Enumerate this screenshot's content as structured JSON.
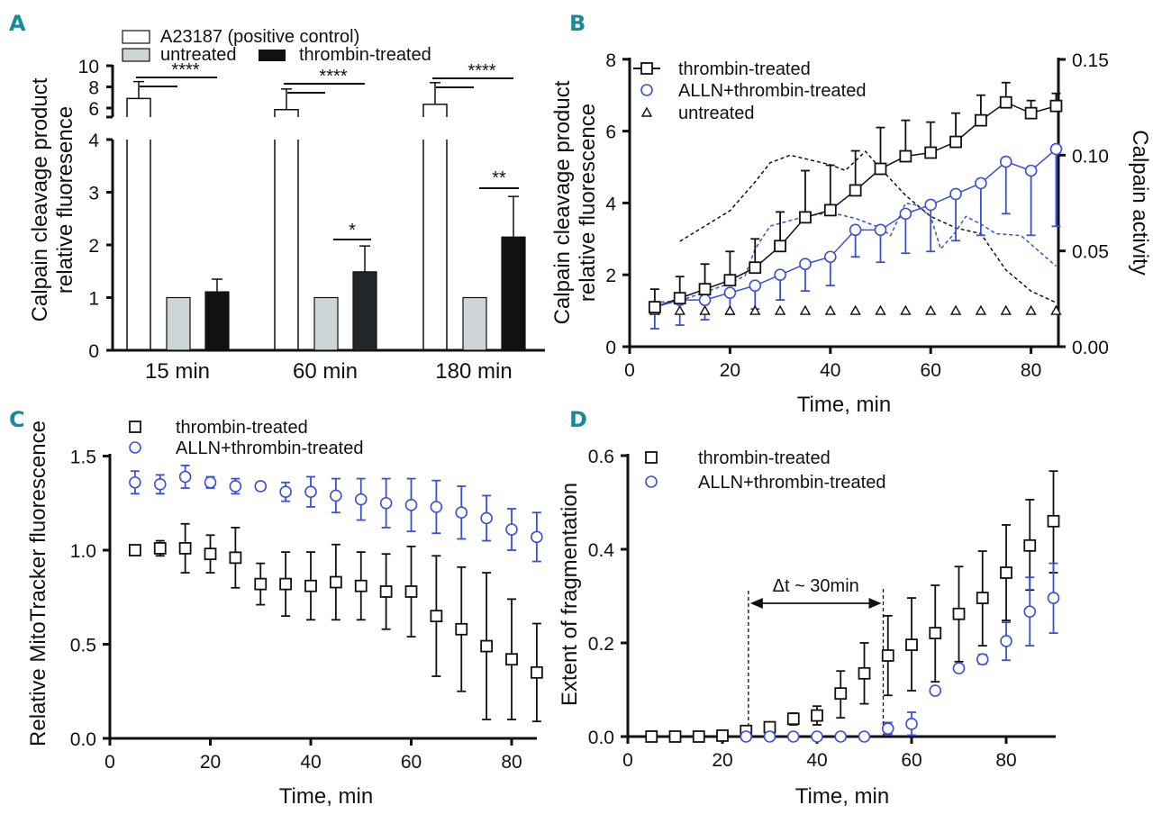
{
  "colors": {
    "black": "#111111",
    "blue": "#3b4fd6",
    "gray_bar": "#cdd5d6",
    "panel_letter": "#1a8a9a"
  },
  "chart_data": [
    {
      "panel": "A",
      "type": "bar",
      "categories": [
        "15 min",
        "60 min",
        "180 min"
      ],
      "ylabel": [
        "Calpain cleavage product",
        "relative fluoresence"
      ],
      "y_axis_broken": true,
      "yticks_lower": [
        "0",
        "1",
        "2",
        "3",
        "4"
      ],
      "yticks_upper": [
        "6",
        "8",
        "10"
      ],
      "legend": [
        "A23187 (positive control)",
        "untreated",
        "thrombin-treated"
      ],
      "series": [
        {
          "name": "A23187 (positive control)",
          "values": [
            6.9,
            5.85,
            6.35
          ],
          "err_upper": [
            8.5,
            7.8,
            8.4
          ],
          "color": "#ffffff"
        },
        {
          "name": "untreated",
          "values": [
            1,
            1,
            1
          ],
          "color": "#cdd5d6"
        },
        {
          "name": "thrombin-treated",
          "values": [
            1.11,
            1.49,
            2.15
          ],
          "err_upper": [
            1.35,
            1.98,
            2.92
          ],
          "color": "#111111"
        }
      ],
      "significance": [
        {
          "group": "15 min",
          "label": "****"
        },
        {
          "group": "60 min",
          "label": "****"
        },
        {
          "group": "180 min",
          "label": "****"
        },
        {
          "group": "60 min",
          "label": "*"
        },
        {
          "group": "180 min",
          "label": "**"
        }
      ]
    },
    {
      "panel": "B",
      "type": "line",
      "xlabel": "Time, min",
      "ylabel": [
        "Calpain cleavage product",
        "relative fluorescence"
      ],
      "ylabel_right": "Calpain activity",
      "xlim": [
        0,
        85
      ],
      "ylim": [
        0,
        8
      ],
      "ylim_right": [
        0,
        0.15
      ],
      "xticks": [
        "0",
        "20",
        "40",
        "60",
        "80"
      ],
      "yticks": [
        "0",
        "2",
        "4",
        "6",
        "8"
      ],
      "yticks_right": [
        "0.00",
        "0.05",
        "0.10",
        "0.15"
      ],
      "legend": [
        "thrombin-treated",
        "ALLN+thrombin-treated",
        "untreated"
      ],
      "x": [
        5,
        10,
        15,
        20,
        25,
        30,
        35,
        40,
        45,
        50,
        55,
        60,
        65,
        70,
        75,
        80,
        85
      ],
      "series": [
        {
          "name": "thrombin-treated",
          "marker": "square",
          "color": "#111111",
          "values": [
            1.1,
            1.35,
            1.6,
            1.85,
            2.2,
            2.8,
            3.6,
            3.8,
            4.35,
            4.95,
            5.3,
            5.4,
            5.7,
            6.3,
            6.8,
            6.5,
            6.7
          ],
          "err_upper": [
            1.6,
            1.95,
            2.3,
            2.65,
            3.0,
            3.75,
            4.9,
            5.05,
            5.45,
            6.1,
            6.3,
            6.25,
            6.5,
            7.0,
            7.35,
            6.85,
            7.05
          ]
        },
        {
          "name": "ALLN+thrombin-treated",
          "marker": "circle",
          "color": "#3b4fd6",
          "values": [
            1.1,
            1.3,
            1.3,
            1.5,
            1.7,
            2.0,
            2.3,
            2.5,
            3.25,
            3.25,
            3.7,
            3.95,
            4.25,
            4.55,
            5.15,
            4.9,
            5.5
          ],
          "err_lower": [
            0.5,
            0.6,
            0.75,
            0.9,
            1.05,
            1.3,
            1.55,
            1.7,
            2.5,
            2.35,
            2.6,
            2.65,
            2.95,
            3.1,
            3.7,
            3.1,
            3.35
          ]
        },
        {
          "name": "untreated",
          "marker": "triangle",
          "color": "#111111",
          "values": [
            1,
            1,
            1,
            1,
            1,
            1,
            1,
            1,
            1,
            1,
            1,
            1,
            1,
            1,
            1,
            1,
            1
          ]
        }
      ],
      "calpain_activity_right_axis": [
        {
          "color": "#111111",
          "style": "dashed",
          "x": [
            10,
            20,
            25,
            28,
            32,
            40,
            43,
            47,
            50,
            55,
            60,
            65,
            70,
            75,
            80,
            85
          ],
          "values": [
            0.055,
            0.071,
            0.086,
            0.096,
            0.1,
            0.095,
            0.092,
            0.102,
            0.093,
            0.079,
            0.068,
            0.062,
            0.059,
            0.04,
            0.029,
            0.023
          ]
        },
        {
          "color": "#3b4fd6",
          "style": "dashed",
          "x": [
            5,
            10,
            20,
            23,
            25,
            28,
            35,
            40,
            45,
            50,
            52,
            55,
            57,
            60,
            62,
            65,
            67,
            70,
            73,
            78,
            85
          ],
          "values": [
            0.023,
            0.024,
            0.033,
            0.037,
            0.051,
            0.063,
            0.068,
            0.07,
            0.067,
            0.062,
            0.058,
            0.075,
            0.074,
            0.068,
            0.051,
            0.06,
            0.068,
            0.064,
            0.059,
            0.058,
            0.042
          ]
        }
      ]
    },
    {
      "panel": "C",
      "type": "scatter",
      "xlabel": "Time, min",
      "ylabel": "Relative MitoTracker fluorescence",
      "xlim": [
        0,
        85
      ],
      "ylim": [
        0,
        1.5
      ],
      "xticks": [
        "0",
        "20",
        "40",
        "60",
        "80"
      ],
      "yticks": [
        "0.0",
        "0.5",
        "1.0",
        "1.5"
      ],
      "legend": [
        "thrombin-treated",
        "ALLN+thrombin-treated"
      ],
      "x": [
        5,
        10,
        15,
        20,
        25,
        30,
        35,
        40,
        45,
        50,
        55,
        60,
        65,
        70,
        75,
        80,
        85
      ],
      "series": [
        {
          "name": "thrombin-treated",
          "marker": "square",
          "color": "#111111",
          "values": [
            1.0,
            1.01,
            1.01,
            0.98,
            0.96,
            0.82,
            0.82,
            0.81,
            0.83,
            0.81,
            0.78,
            0.78,
            0.65,
            0.58,
            0.49,
            0.42,
            0.35
          ],
          "err": [
            0.02,
            0.04,
            0.13,
            0.1,
            0.16,
            0.11,
            0.17,
            0.18,
            0.2,
            0.18,
            0.2,
            0.24,
            0.32,
            0.33,
            0.39,
            0.32,
            0.26
          ]
        },
        {
          "name": "ALLN+thrombin-treated",
          "marker": "circle",
          "color": "#3b4fd6",
          "values": [
            1.36,
            1.35,
            1.39,
            1.36,
            1.34,
            1.34,
            1.31,
            1.31,
            1.29,
            1.27,
            1.25,
            1.24,
            1.23,
            1.2,
            1.17,
            1.11,
            1.07
          ],
          "err": [
            0.06,
            0.05,
            0.06,
            0.03,
            0.04,
            0.02,
            0.05,
            0.08,
            0.09,
            0.11,
            0.13,
            0.14,
            0.14,
            0.14,
            0.12,
            0.11,
            0.13
          ]
        }
      ]
    },
    {
      "panel": "D",
      "type": "scatter",
      "xlabel": "Time, min",
      "ylabel": "Extent of fragmentation",
      "xlim": [
        0,
        90
      ],
      "ylim": [
        0,
        0.6
      ],
      "xticks": [
        "0",
        "20",
        "40",
        "60",
        "80"
      ],
      "yticks": [
        "0.0",
        "0.2",
        "0.4",
        "0.6"
      ],
      "legend": [
        "thrombin-treated",
        "ALLN+thrombin-treated"
      ],
      "annotation": {
        "text": "Δt ~ 30min",
        "from_x": 25.5,
        "to_x": 54
      },
      "x": [
        5,
        10,
        15,
        20,
        25,
        30,
        35,
        40,
        45,
        50,
        55,
        60,
        65,
        70,
        75,
        80,
        85,
        90
      ],
      "series": [
        {
          "name": "thrombin-treated",
          "marker": "square",
          "color": "#111111",
          "values": [
            0,
            0,
            0,
            0.002,
            0.012,
            0.02,
            0.038,
            0.045,
            0.092,
            0.135,
            0.173,
            0.196,
            0.221,
            0.262,
            0.296,
            0.35,
            0.408,
            0.46
          ],
          "err_top": [
            null,
            null,
            null,
            null,
            null,
            null,
            0.05,
            0.065,
            0.14,
            0.2,
            0.258,
            0.296,
            0.323,
            0.363,
            0.396,
            0.452,
            0.506,
            0.567
          ],
          "err_bottom": [
            null,
            null,
            null,
            null,
            null,
            null,
            0.025,
            0.025,
            0.04,
            0.07,
            0.088,
            0.098,
            0.117,
            0.16,
            0.194,
            0.248,
            0.313,
            0.35
          ]
        },
        {
          "name": "ALLN+thrombin-treated",
          "marker": "circle",
          "color": "#3b4fd6",
          "values": [
            null,
            null,
            null,
            null,
            0,
            0,
            0,
            0,
            0,
            0,
            0.017,
            0.027,
            0.098,
            0.146,
            0.165,
            0.204,
            0.267,
            0.296
          ],
          "err_top": [
            null,
            null,
            null,
            null,
            null,
            null,
            null,
            null,
            null,
            null,
            0.03,
            0.052,
            null,
            null,
            0.175,
            0.244,
            0.34,
            0.37
          ],
          "err_bottom": [
            null,
            null,
            null,
            null,
            null,
            null,
            null,
            null,
            null,
            null,
            0.005,
            0.003,
            null,
            null,
            0.155,
            0.163,
            0.194,
            0.221
          ]
        }
      ]
    }
  ],
  "panel_letters": [
    "A",
    "B",
    "C",
    "D"
  ]
}
